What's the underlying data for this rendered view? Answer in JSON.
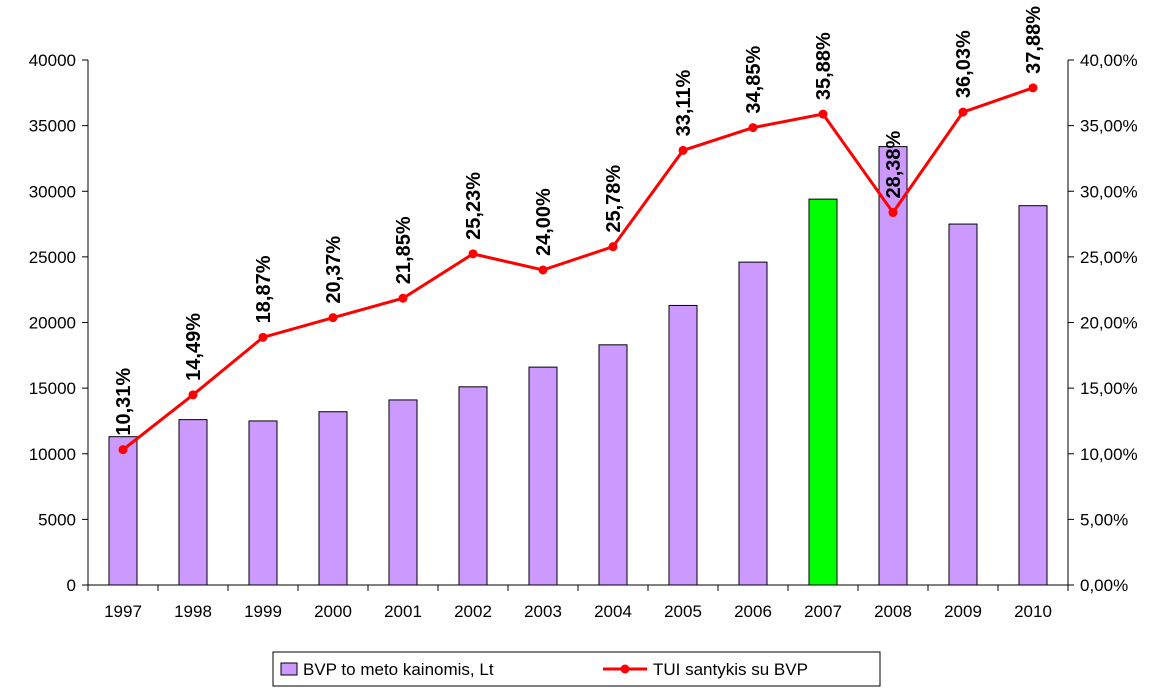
{
  "chart_data": {
    "type": "bar+line",
    "categories": [
      "1997",
      "1998",
      "1999",
      "2000",
      "2001",
      "2002",
      "2003",
      "2004",
      "2005",
      "2006",
      "2007",
      "2008",
      "2009",
      "2010"
    ],
    "series": [
      {
        "name": "BVP to meto kainomis, Lt",
        "type": "bar",
        "axis": "left",
        "color": "#cc99ff",
        "highlight": {
          "category": "2007",
          "color": "#00ff00"
        },
        "values": [
          11300,
          12600,
          12500,
          13200,
          14100,
          15100,
          16600,
          18300,
          21300,
          24600,
          29400,
          33400,
          27500,
          28900
        ]
      },
      {
        "name": "TUI santykis su BVP",
        "type": "line",
        "axis": "right",
        "color": "#ff0000",
        "values": [
          10.31,
          14.49,
          18.87,
          20.37,
          21.85,
          25.23,
          24.0,
          25.78,
          33.11,
          34.85,
          35.88,
          28.38,
          36.03,
          37.88
        ],
        "labels": [
          "10,31%",
          "14,49%",
          "18,87%",
          "20,37%",
          "21,85%",
          "25,23%",
          "24,00%",
          "25,78%",
          "33,11%",
          "34,85%",
          "35,88%",
          "28,38%",
          "36,03%",
          "37,88%"
        ]
      }
    ],
    "left_axis": {
      "ylim": [
        0,
        40000
      ],
      "ticks": [
        "0",
        "5000",
        "10000",
        "15000",
        "20000",
        "25000",
        "30000",
        "35000",
        "40000"
      ]
    },
    "right_axis": {
      "ylim": [
        0,
        40
      ],
      "ticks": [
        "0,00%",
        "5,00%",
        "10,00%",
        "15,00%",
        "20,00%",
        "25,00%",
        "30,00%",
        "35,00%",
        "40,00%"
      ]
    },
    "grid": false,
    "legend_position": "bottom-center"
  }
}
